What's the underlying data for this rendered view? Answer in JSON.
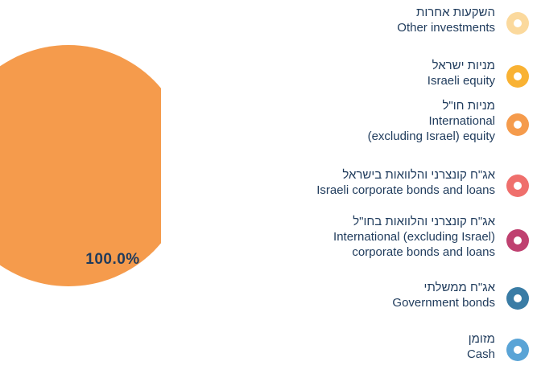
{
  "chart_data": {
    "type": "pie",
    "slices": [
      {
        "name_he": "השקעות אחרות",
        "name_en": [
          "Other investments"
        ],
        "value": 0,
        "color": "#fbd99d"
      },
      {
        "name_he": "מניות ישראל",
        "name_en": [
          "Israeli equity"
        ],
        "value": 0,
        "color": "#f9b233"
      },
      {
        "name_he": "מניות חו\"ל",
        "name_en": [
          "International",
          "(excluding Israel) equity"
        ],
        "value": 100.0,
        "color": "#f59b4c"
      },
      {
        "name_he": "אג\"ח קונצרני והלוואות בישראל",
        "name_en": [
          "Israeli corporate bonds and loans"
        ],
        "value": 0,
        "color": "#ef6f6c"
      },
      {
        "name_he": "אג\"ח קונצרני והלוואות בחו\"ל",
        "name_en": [
          "International (excluding Israel)",
          "corporate bonds and loans"
        ],
        "value": 0,
        "color": "#bf4170"
      },
      {
        "name_he": "אג\"ח ממשלתי",
        "name_en": [
          "Government bonds"
        ],
        "value": 0,
        "color": "#3a7ca5"
      },
      {
        "name_he": "מזומן",
        "name_en": [
          "Cash"
        ],
        "value": 0,
        "color": "#5aa4d6"
      }
    ],
    "data_labels": [
      "100.0%"
    ]
  }
}
